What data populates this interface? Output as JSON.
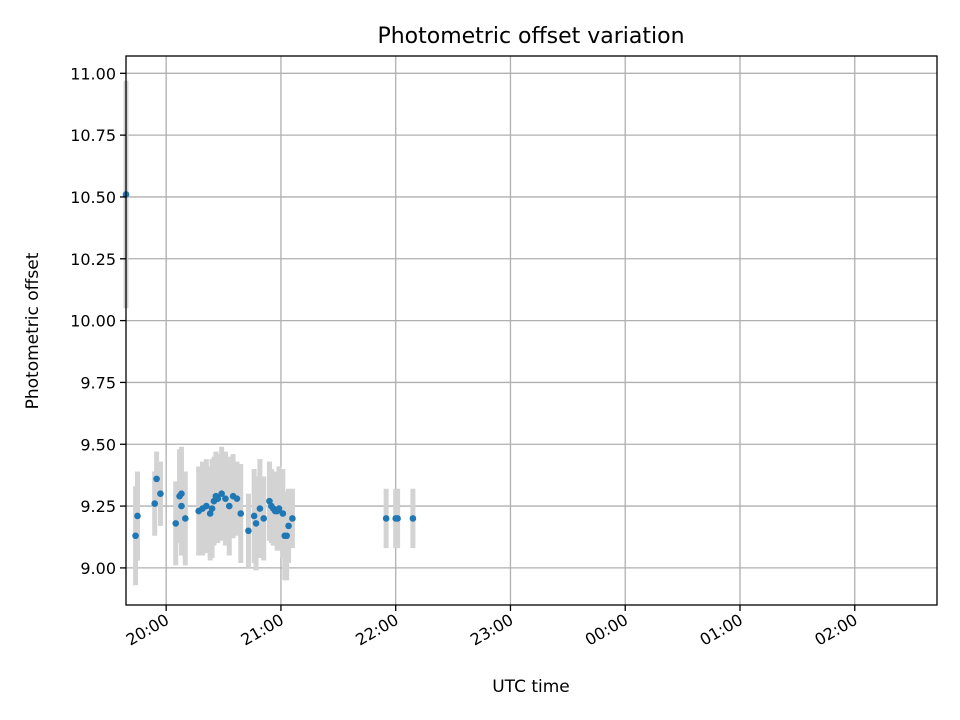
{
  "chart_data": {
    "type": "scatter",
    "title": "Photometric offset variation",
    "xlabel": "UTC time",
    "ylabel": "Photometric offset",
    "xlim": [
      "19:39",
      "02:43"
    ],
    "ylim": [
      8.85,
      11.07
    ],
    "x_ticks": [
      "20:00",
      "21:00",
      "22:00",
      "23:00",
      "00:00",
      "01:00",
      "02:00"
    ],
    "y_ticks": [
      "9.00",
      "9.25",
      "9.50",
      "9.75",
      "10.00",
      "10.25",
      "10.50",
      "10.75",
      "11.00"
    ],
    "grid": true,
    "colors": {
      "points": "#1f77b4",
      "error_bars": "#d3d3d3"
    },
    "series": [
      {
        "x": [
          "19:39",
          "19:44",
          "19:45",
          "19:54",
          "19:55",
          "19:57",
          "20:05",
          "20:07",
          "20:08",
          "20:08",
          "20:10",
          "20:17",
          "20:19",
          "20:21",
          "20:23",
          "20:24",
          "20:25",
          "20:26",
          "20:27",
          "20:29",
          "20:31",
          "20:33",
          "20:35",
          "20:37",
          "20:39",
          "20:43",
          "20:46",
          "20:47",
          "20:49",
          "20:51",
          "20:54",
          "20:55",
          "20:56",
          "20:57",
          "20:58",
          "20:59",
          "21:01",
          "21:02",
          "21:03",
          "21:04",
          "21:06",
          "21:55",
          "22:00",
          "22:01",
          "22:09"
        ],
        "y": [
          10.51,
          9.13,
          9.21,
          9.26,
          9.36,
          9.3,
          9.18,
          9.29,
          9.25,
          9.3,
          9.2,
          9.23,
          9.24,
          9.25,
          9.22,
          9.24,
          9.27,
          9.29,
          9.28,
          9.3,
          9.28,
          9.25,
          9.29,
          9.28,
          9.22,
          9.15,
          9.21,
          9.18,
          9.24,
          9.2,
          9.27,
          9.25,
          9.24,
          9.23,
          9.23,
          9.24,
          9.22,
          9.13,
          9.13,
          9.17,
          9.2,
          9.2,
          9.2,
          9.2,
          9.2
        ],
        "err": [
          0.46,
          0.2,
          0.18,
          0.13,
          0.11,
          0.13,
          0.17,
          0.19,
          0.2,
          0.19,
          0.19,
          0.18,
          0.19,
          0.19,
          0.19,
          0.2,
          0.18,
          0.18,
          0.18,
          0.19,
          0.19,
          0.2,
          0.17,
          0.15,
          0.2,
          0.15,
          0.19,
          0.19,
          0.2,
          0.17,
          0.16,
          0.15,
          0.15,
          0.14,
          0.16,
          0.17,
          0.18,
          0.18,
          0.18,
          0.15,
          0.12,
          0.12,
          0.12,
          0.12,
          0.12
        ]
      }
    ]
  }
}
